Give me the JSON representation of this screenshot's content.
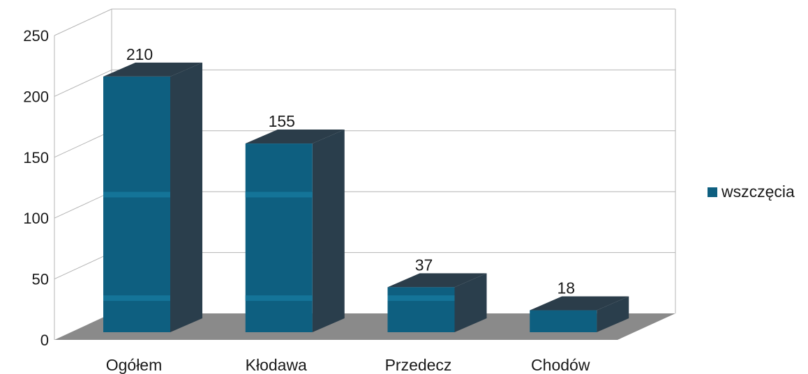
{
  "chart_data": {
    "type": "bar",
    "categories": [
      "Ogółem",
      "Kłodawa",
      "Przedecz",
      "Chodów"
    ],
    "series": [
      {
        "name": "wszczęcia",
        "values": [
          210,
          155,
          37,
          18
        ]
      }
    ],
    "data_labels": [
      "210",
      "155",
      "37",
      "18"
    ],
    "yticks": [
      "0",
      "50",
      "100",
      "150",
      "200",
      "250"
    ],
    "ylim": [
      0,
      250
    ],
    "grid": true,
    "legend_position": "right",
    "three_d": true,
    "colors": {
      "bar_front": "#0e5f80",
      "bar_band": "#147498",
      "bar_side": "#2a3e4c",
      "bar_top": "#2b3d4a",
      "floor": "#8a8a8a",
      "grid": "#b4b4b4"
    }
  }
}
